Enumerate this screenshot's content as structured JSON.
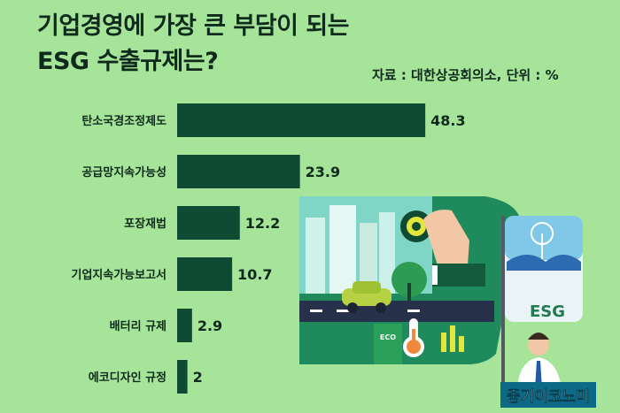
{
  "title_line1": "기업경영에 가장 큰 부담이 되는",
  "title_line2": "ESG 수출규제는?",
  "source": "자료 : 대한상공회의소, 단위 : %",
  "illustration": {
    "sign": "ESG",
    "eco": "ECO"
  },
  "badge": "중기이코노미",
  "colors": {
    "background": "#a6e49a",
    "bar": "#0f4a34",
    "text": "#0e2a1c"
  },
  "chart_data": {
    "type": "bar",
    "orientation": "horizontal",
    "categories": [
      "탄소국경조정제도",
      "공급망지속가능성",
      "포장재법",
      "기업지속가능보고서",
      "배터리 규제",
      "에코디자인 규정"
    ],
    "values": [
      48.3,
      23.9,
      12.2,
      10.7,
      2.9,
      2
    ],
    "title": "기업경영에 가장 큰 부담이 되는 ESG 수출규제는?",
    "unit": "%",
    "grid": false
  }
}
